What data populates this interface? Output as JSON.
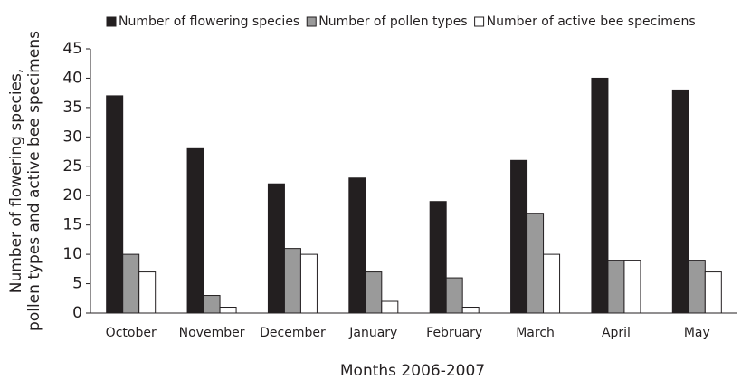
{
  "chart_data": {
    "type": "bar",
    "xlabel": "Months 2006-2007",
    "ylabel": [
      "Number of flowering species,",
      "pollen types and active bee specimens"
    ],
    "categories": [
      "October",
      "November",
      "December",
      "January",
      "February",
      "March",
      "April",
      "May"
    ],
    "series": [
      {
        "name": "Number of flowering species",
        "color": "#231f20",
        "values": [
          37,
          28,
          22,
          23,
          19,
          26,
          40,
          38
        ]
      },
      {
        "name": "Number of pollen types",
        "color": "#9a9a9a",
        "values": [
          10,
          3,
          11,
          7,
          6,
          17,
          9,
          9
        ]
      },
      {
        "name": "Number of active bee specimens",
        "color": "#ffffff",
        "values": [
          7,
          1,
          10,
          2,
          1,
          10,
          9,
          7
        ]
      }
    ],
    "ylim": [
      0,
      45
    ],
    "yticks": [
      0,
      5,
      10,
      15,
      20,
      25,
      30,
      35,
      40,
      45
    ],
    "grid": false,
    "legend": "top"
  }
}
